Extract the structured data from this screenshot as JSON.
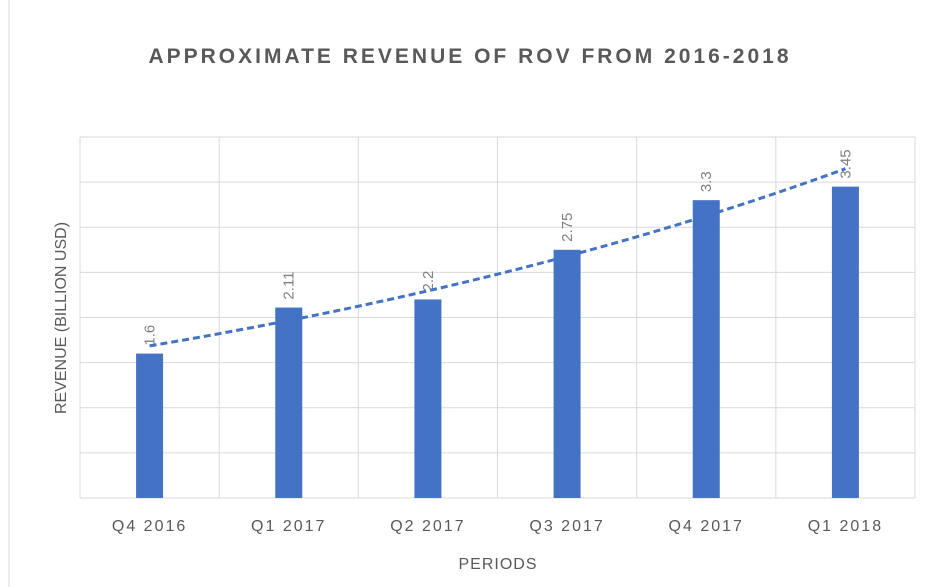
{
  "chart_data": {
    "type": "bar",
    "title": "APPROXIMATE REVENUE OF ROV FROM 2016-2018",
    "x_label": "PERIODS",
    "y_label": "REVENUE (BILLION USD)",
    "categories": [
      "Q4 2016",
      "Q1 2017",
      "Q2 2017",
      "Q3 2017",
      "Q4 2017",
      "Q1 2018"
    ],
    "values": [
      1.6,
      2.11,
      2.2,
      2.75,
      3.3,
      3.45
    ],
    "color": "#4472c4",
    "ylim": [
      0,
      4
    ],
    "yticks": [
      0,
      0.5,
      1,
      1.5,
      2,
      2.5,
      3,
      3.5,
      4
    ],
    "grid": true,
    "trendline": "exponential"
  }
}
